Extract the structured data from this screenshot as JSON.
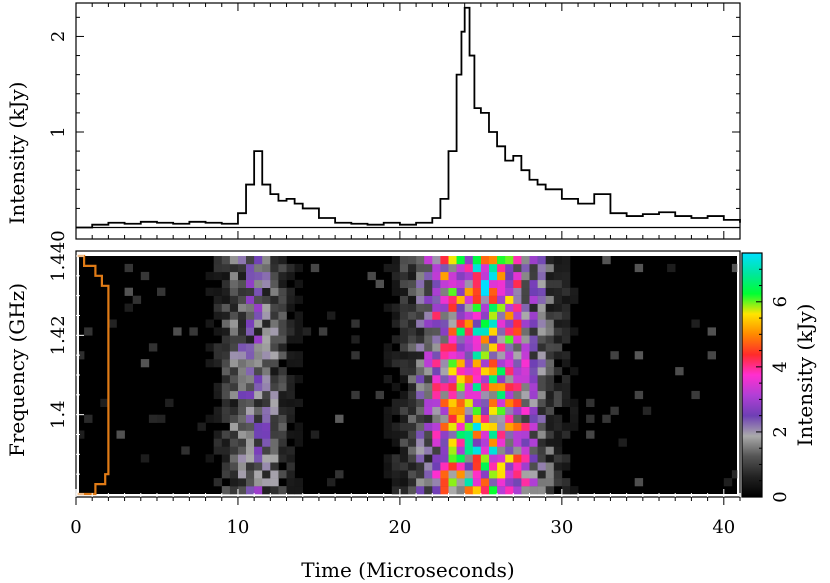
{
  "chart_data": [
    {
      "type": "line",
      "ylabel": "Intensity (kJy)",
      "xlim": [
        0,
        41
      ],
      "ylim": [
        -0.12,
        2.35
      ],
      "yticks": [
        "1",
        "2"
      ],
      "baseline": 0,
      "x": [
        0,
        1,
        2,
        3,
        4,
        5,
        6,
        7,
        8,
        9,
        10,
        10.5,
        11,
        11.5,
        12,
        12.5,
        13,
        13.5,
        14,
        15,
        16,
        17,
        18,
        19,
        20,
        21,
        22,
        22.5,
        23,
        23.5,
        23.8,
        24,
        24.3,
        24.6,
        25,
        25.5,
        26,
        26.5,
        27,
        27.5,
        28,
        28.5,
        29,
        30,
        31,
        32,
        33,
        34,
        35,
        36,
        37,
        38,
        39,
        40,
        41
      ],
      "y": [
        0,
        0.03,
        0.05,
        0.04,
        0.06,
        0.05,
        0.04,
        0.06,
        0.05,
        0.04,
        0.15,
        0.45,
        0.8,
        0.45,
        0.35,
        0.28,
        0.3,
        0.25,
        0.2,
        0.1,
        0.05,
        0.04,
        0.03,
        0.05,
        0.03,
        0.05,
        0.1,
        0.3,
        0.8,
        1.6,
        2.05,
        2.3,
        1.8,
        1.25,
        1.2,
        1.0,
        0.85,
        0.7,
        0.75,
        0.6,
        0.5,
        0.45,
        0.4,
        0.3,
        0.25,
        0.35,
        0.15,
        0.12,
        0.14,
        0.16,
        0.12,
        0.1,
        0.12,
        0.08,
        0.05
      ]
    },
    {
      "type": "heatmap",
      "xlabel": "Time (Microseconds)",
      "ylabel": "Frequency (GHz)",
      "xlim": [
        0,
        41
      ],
      "ylim": [
        1.38,
        1.44
      ],
      "xticks": [
        "0",
        "10",
        "20",
        "30",
        "40"
      ],
      "yticks": [
        "1.4",
        "1.42",
        "1.440"
      ],
      "colorbar": {
        "label": "Intensity (kJy)",
        "range": [
          0,
          7.5
        ],
        "ticks": [
          "0",
          "2",
          "4",
          "6"
        ],
        "stops": [
          "#000000",
          "#222222",
          "#555555",
          "#aaaaaa",
          "#6e3fb5",
          "#b13fd6",
          "#ff2fd0",
          "#ff2b2b",
          "#ff8a00",
          "#ffe500",
          "#00ff33",
          "#00e6a0",
          "#00e0ff"
        ]
      },
      "bursts": [
        {
          "center_time": 11.0,
          "width": 4.0,
          "peak_kJy": 2.5
        },
        {
          "center_time": 25.0,
          "width": 7.0,
          "peak_kJy": 6.5
        }
      ],
      "spectrum_color": "#e07b16"
    }
  ]
}
